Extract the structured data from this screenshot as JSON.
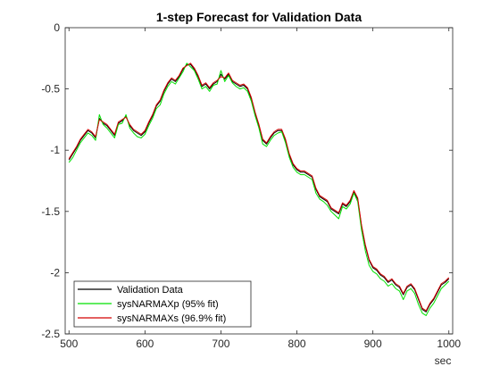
{
  "chart_data": {
    "type": "line",
    "title": "1-step Forecast for Validation Data",
    "xlabel": "sec",
    "ylabel": "",
    "xlim": [
      495,
      1005
    ],
    "ylim": [
      -2.5,
      0
    ],
    "xticks": [
      500,
      600,
      700,
      800,
      900,
      1000
    ],
    "yticks": [
      0,
      -0.5,
      -1,
      -1.5,
      -2,
      -2.5
    ],
    "legend_position": "bottom-left",
    "grid": false,
    "x": [
      500,
      505,
      510,
      515,
      520,
      525,
      530,
      535,
      540,
      545,
      550,
      555,
      560,
      565,
      570,
      575,
      580,
      585,
      590,
      595,
      600,
      605,
      610,
      615,
      620,
      625,
      630,
      635,
      640,
      645,
      650,
      655,
      660,
      665,
      670,
      675,
      680,
      685,
      690,
      695,
      700,
      705,
      710,
      715,
      720,
      725,
      730,
      735,
      740,
      745,
      750,
      755,
      760,
      765,
      770,
      775,
      780,
      785,
      790,
      795,
      800,
      805,
      810,
      815,
      820,
      825,
      830,
      835,
      840,
      845,
      850,
      855,
      860,
      865,
      870,
      875,
      880,
      885,
      890,
      895,
      900,
      905,
      910,
      915,
      920,
      925,
      930,
      935,
      940,
      945,
      950,
      955,
      960,
      965,
      970,
      975,
      980,
      985,
      990,
      995,
      1000
    ],
    "series": [
      {
        "name": "Validation Data",
        "color": "#000000",
        "values": [
          -1.08,
          -1.03,
          -0.98,
          -0.92,
          -0.88,
          -0.84,
          -0.86,
          -0.9,
          -0.74,
          -0.78,
          -0.8,
          -0.84,
          -0.88,
          -0.78,
          -0.76,
          -0.72,
          -0.8,
          -0.84,
          -0.86,
          -0.88,
          -0.85,
          -0.78,
          -0.72,
          -0.64,
          -0.6,
          -0.52,
          -0.46,
          -0.42,
          -0.44,
          -0.4,
          -0.34,
          -0.3,
          -0.3,
          -0.34,
          -0.4,
          -0.48,
          -0.46,
          -0.5,
          -0.46,
          -0.44,
          -0.38,
          -0.42,
          -0.38,
          -0.44,
          -0.46,
          -0.48,
          -0.47,
          -0.5,
          -0.58,
          -0.7,
          -0.8,
          -0.92,
          -0.95,
          -0.9,
          -0.86,
          -0.84,
          -0.84,
          -0.92,
          -1.04,
          -1.12,
          -1.16,
          -1.18,
          -1.18,
          -1.2,
          -1.22,
          -1.32,
          -1.38,
          -1.4,
          -1.42,
          -1.48,
          -1.5,
          -1.52,
          -1.44,
          -1.46,
          -1.42,
          -1.34,
          -1.4,
          -1.62,
          -1.78,
          -1.9,
          -1.96,
          -1.98,
          -2.02,
          -2.04,
          -2.08,
          -2.06,
          -2.1,
          -2.12,
          -2.18,
          -2.12,
          -2.1,
          -2.14,
          -2.22,
          -2.3,
          -2.32,
          -2.26,
          -2.22,
          -2.16,
          -2.1,
          -2.08,
          -2.05
        ]
      },
      {
        "name": "sysNARMAXp (95% fit)",
        "color": "#00e000",
        "values": [
          -1.1,
          -1.06,
          -1.0,
          -0.94,
          -0.9,
          -0.86,
          -0.88,
          -0.92,
          -0.71,
          -0.79,
          -0.82,
          -0.86,
          -0.9,
          -0.79,
          -0.78,
          -0.71,
          -0.82,
          -0.86,
          -0.89,
          -0.9,
          -0.87,
          -0.8,
          -0.74,
          -0.66,
          -0.63,
          -0.54,
          -0.48,
          -0.44,
          -0.46,
          -0.41,
          -0.36,
          -0.29,
          -0.32,
          -0.35,
          -0.42,
          -0.5,
          -0.48,
          -0.52,
          -0.47,
          -0.46,
          -0.35,
          -0.44,
          -0.39,
          -0.45,
          -0.48,
          -0.5,
          -0.49,
          -0.52,
          -0.6,
          -0.72,
          -0.82,
          -0.95,
          -0.97,
          -0.92,
          -0.88,
          -0.86,
          -0.85,
          -0.94,
          -1.06,
          -1.14,
          -1.18,
          -1.2,
          -1.2,
          -1.22,
          -1.24,
          -1.35,
          -1.4,
          -1.42,
          -1.45,
          -1.5,
          -1.53,
          -1.56,
          -1.46,
          -1.48,
          -1.44,
          -1.35,
          -1.42,
          -1.65,
          -1.82,
          -1.94,
          -1.99,
          -2.01,
          -2.05,
          -2.07,
          -2.11,
          -2.09,
          -2.13,
          -2.15,
          -2.22,
          -2.15,
          -2.13,
          -2.17,
          -2.26,
          -2.33,
          -2.35,
          -2.29,
          -2.25,
          -2.19,
          -2.13,
          -2.1,
          -2.07
        ]
      },
      {
        "name": "sysNARMAXs (96.9% fit)",
        "color": "#d40000",
        "values": [
          -1.07,
          -1.02,
          -0.97,
          -0.91,
          -0.87,
          -0.83,
          -0.85,
          -0.89,
          -0.75,
          -0.77,
          -0.79,
          -0.83,
          -0.87,
          -0.77,
          -0.75,
          -0.73,
          -0.79,
          -0.83,
          -0.85,
          -0.87,
          -0.84,
          -0.77,
          -0.71,
          -0.63,
          -0.59,
          -0.51,
          -0.45,
          -0.41,
          -0.43,
          -0.39,
          -0.33,
          -0.31,
          -0.29,
          -0.33,
          -0.39,
          -0.47,
          -0.45,
          -0.49,
          -0.45,
          -0.43,
          -0.4,
          -0.41,
          -0.37,
          -0.43,
          -0.45,
          -0.47,
          -0.46,
          -0.49,
          -0.57,
          -0.69,
          -0.79,
          -0.91,
          -0.94,
          -0.89,
          -0.85,
          -0.83,
          -0.83,
          -0.91,
          -1.03,
          -1.11,
          -1.15,
          -1.17,
          -1.17,
          -1.19,
          -1.21,
          -1.31,
          -1.37,
          -1.39,
          -1.41,
          -1.47,
          -1.49,
          -1.51,
          -1.43,
          -1.45,
          -1.41,
          -1.33,
          -1.39,
          -1.61,
          -1.77,
          -1.89,
          -1.95,
          -1.97,
          -2.01,
          -2.03,
          -2.07,
          -2.05,
          -2.09,
          -2.11,
          -2.17,
          -2.11,
          -2.09,
          -2.13,
          -2.21,
          -2.29,
          -2.31,
          -2.25,
          -2.21,
          -2.15,
          -2.09,
          -2.07,
          -2.04
        ]
      }
    ]
  }
}
